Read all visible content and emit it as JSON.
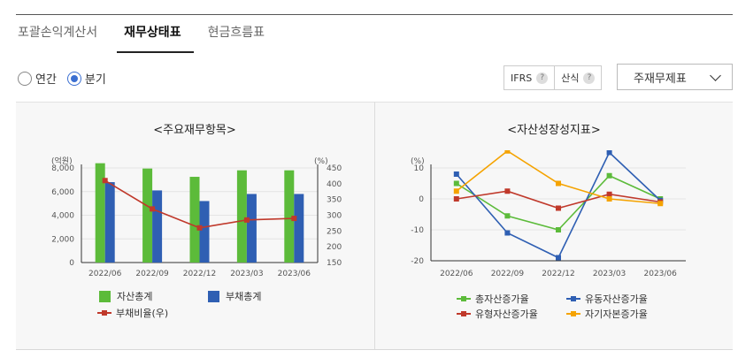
{
  "tabs": [
    {
      "label": "포괄손익계산서",
      "active": false
    },
    {
      "label": "재무상태표",
      "active": true
    },
    {
      "label": "현금흐름표",
      "active": false
    }
  ],
  "period_options": [
    {
      "label": "연간",
      "checked": false
    },
    {
      "label": "분기",
      "checked": true
    }
  ],
  "toolbar": {
    "ifrs_label": "IFRS",
    "formula_label": "산식",
    "help_glyph": "?",
    "statement_select": "주재무제표"
  },
  "colors": {
    "green": "#5cbb3a",
    "blue": "#2f5fb3",
    "red": "#c0392b",
    "orange": "#f5a300",
    "accent": "#3b6fd1"
  },
  "chart_data": [
    {
      "type": "bar",
      "title": "<주요재무항목>",
      "y_unit_label": "(억원)",
      "y2_unit_label": "(%)",
      "categories": [
        "2022/06",
        "2022/09",
        "2022/12",
        "2023/03",
        "2023/06"
      ],
      "ylim": [
        0,
        8000
      ],
      "yticks": [
        "0",
        "2,000",
        "4,000",
        "6,000",
        "8,000"
      ],
      "y2lim": [
        150,
        450
      ],
      "y2ticks": [
        "150",
        "200",
        "250",
        "300",
        "350",
        "400",
        "450"
      ],
      "series": [
        {
          "name": "자산총계",
          "kind": "bar",
          "color": "#5cbb3a",
          "values": [
            8400,
            7950,
            7250,
            7800,
            7800
          ]
        },
        {
          "name": "부채총계",
          "kind": "bar",
          "color": "#2f5fb3",
          "values": [
            6800,
            6100,
            5200,
            5800,
            5800
          ]
        },
        {
          "name": "부채비율(우)",
          "kind": "line",
          "axis": "right",
          "color": "#c0392b",
          "values": [
            410,
            320,
            260,
            285,
            290
          ]
        }
      ],
      "legend_position": "bottom",
      "grid": "horizontal"
    },
    {
      "type": "line",
      "title": "<자산성장성지표>",
      "y_unit_label": "(%)",
      "categories": [
        "2022/06",
        "2022/09",
        "2022/12",
        "2023/03",
        "2023/06"
      ],
      "ylim": [
        -20,
        10
      ],
      "yticks": [
        "-20",
        "-10",
        "0",
        "10"
      ],
      "series": [
        {
          "name": "총자산증가율",
          "color": "#5cbb3a",
          "values": [
            5,
            -5.5,
            -10,
            7.5,
            0
          ]
        },
        {
          "name": "유동자산증가율",
          "color": "#2f5fb3",
          "values": [
            8,
            -11,
            -19,
            15,
            -0.5
          ]
        },
        {
          "name": "유형자산증가율",
          "color": "#c0392b",
          "values": [
            0,
            2.5,
            -3,
            1.5,
            -1
          ]
        },
        {
          "name": "자기자본증가율",
          "color": "#f5a300",
          "values": [
            2.5,
            15.5,
            5,
            0,
            -1.5
          ]
        }
      ],
      "legend_position": "bottom",
      "grid": "horizontal"
    }
  ]
}
